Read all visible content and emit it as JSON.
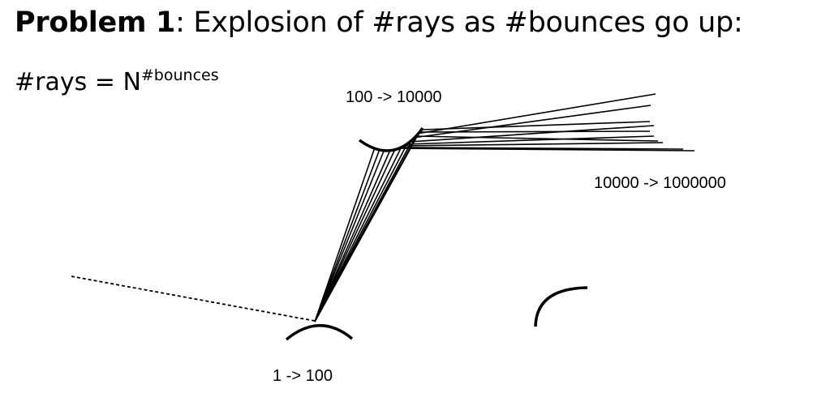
{
  "title": {
    "bold": "Problem 1",
    "rest": ": Explosion of #rays as #bounces go up:"
  },
  "formula": {
    "base": "#rays = N",
    "exponent": "#bounces"
  },
  "labels": {
    "first_bounce": "1 -> 100",
    "second_bounce": "100 -> 10000",
    "third_bounce": "10000 -> 1000000"
  }
}
